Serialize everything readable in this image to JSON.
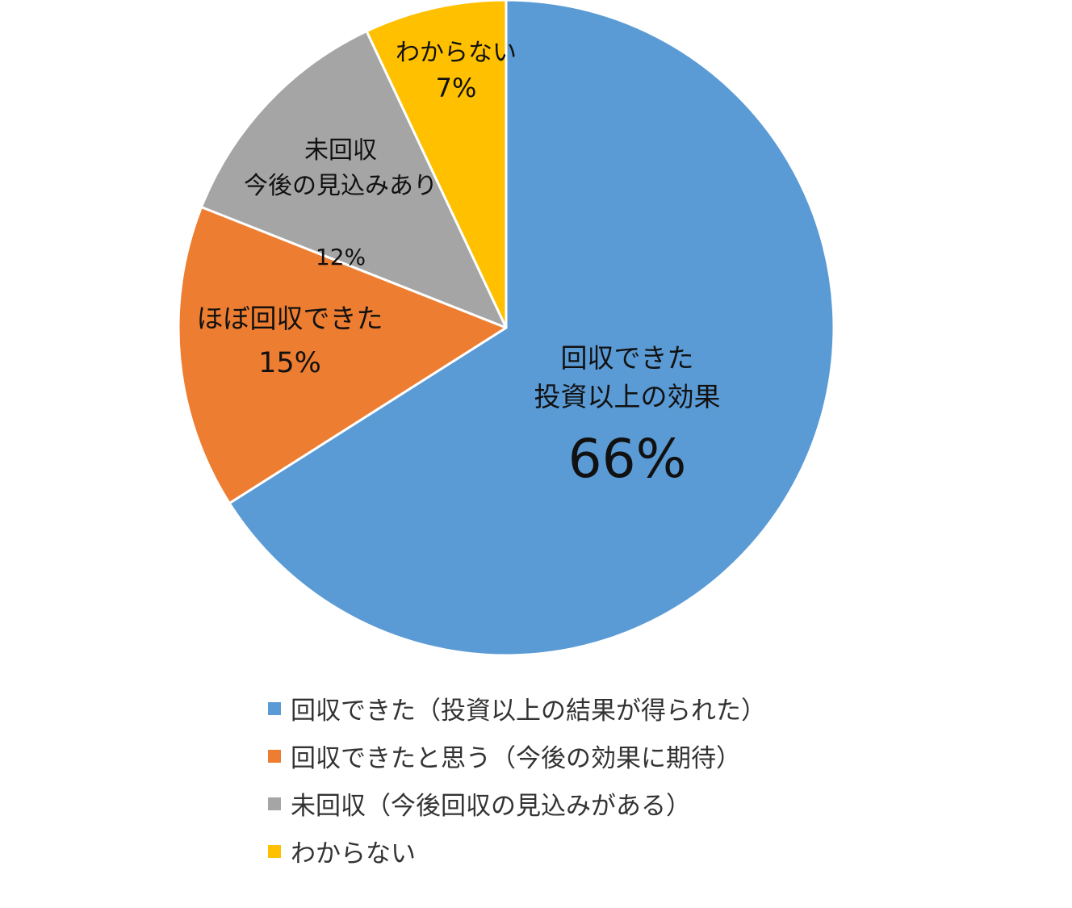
{
  "chart_data": {
    "type": "pie",
    "title": "",
    "slices": [
      {
        "label": "回収できた（投資以上の結果が得られた）",
        "value": 66,
        "color": "#5B9BD5",
        "label_lines": [
          "回収できた",
          "投資以上の効果"
        ],
        "value_text": "66%"
      },
      {
        "label": "回収できたと思う（今後の効果に期待）",
        "value": 15,
        "color": "#ED7D31",
        "label_lines": [
          "ほぼ回収できた"
        ],
        "value_text": "15%"
      },
      {
        "label": "未回収（今後回収の見込みがある）",
        "value": 12,
        "color": "#A5A5A5",
        "label_lines": [
          "未回収",
          "今後の見込みあり"
        ],
        "value_text": "12%"
      },
      {
        "label": "わからない",
        "value": 7,
        "color": "#FFC000",
        "label_lines": [
          "わからない"
        ],
        "value_text": "7%"
      }
    ],
    "start": "top",
    "direction": "clockwise",
    "legend_position": "bottom"
  }
}
